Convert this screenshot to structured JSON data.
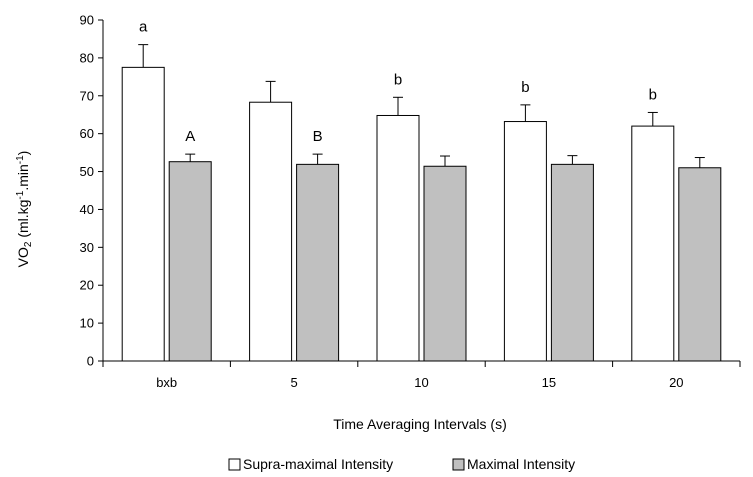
{
  "chart_data": {
    "type": "bar",
    "title": "",
    "xlabel": "Time Averaging Intervals (s)",
    "ylabel": {
      "pre": "VO",
      "sub": "2",
      "mid1": " (ml.kg",
      "sup1": "-1",
      "mid2": ".min",
      "sup2": "-1",
      "post": ")"
    },
    "ylim": [
      0,
      90
    ],
    "yticks": [
      0,
      10,
      20,
      30,
      40,
      50,
      60,
      70,
      80,
      90
    ],
    "grid": false,
    "legend_position": "bottom",
    "categories": [
      "bxb",
      "5",
      "10",
      "15",
      "20"
    ],
    "series": [
      {
        "name": "Supra-maximal Intensity",
        "color": "#ffffff",
        "values": [
          77.5,
          68.3,
          64.8,
          63.2,
          62.0
        ],
        "error": [
          6.0,
          5.5,
          4.8,
          4.4,
          3.6
        ],
        "annotations": [
          "a",
          "",
          "b",
          "b",
          "b"
        ]
      },
      {
        "name": "Maximal Intensity",
        "color": "#c0c0c0",
        "values": [
          52.6,
          51.9,
          51.4,
          51.9,
          51.0
        ],
        "error": [
          2.0,
          2.7,
          2.7,
          2.3,
          2.7
        ],
        "annotations": [
          "A",
          "B",
          "",
          "",
          ""
        ]
      }
    ]
  }
}
